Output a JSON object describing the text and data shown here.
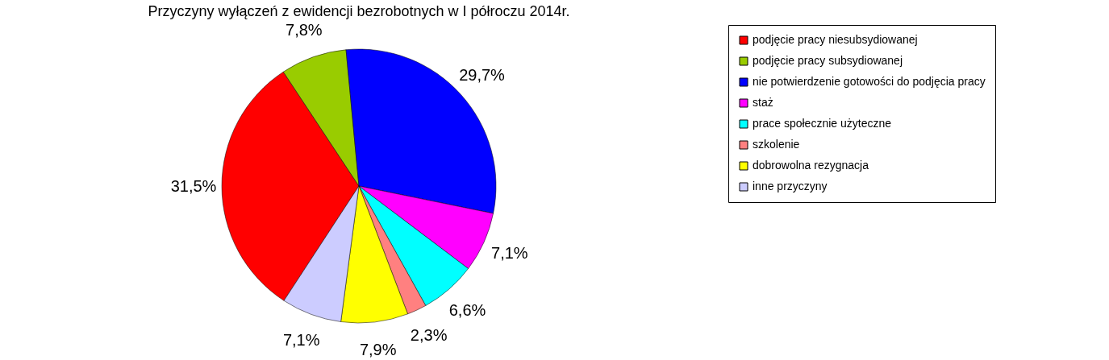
{
  "chart_data": {
    "type": "pie",
    "title": "Przyczyny wyłączeń z ewidencji bezrobotnych w I półroczu 2014r.",
    "categories": [
      "podjęcie pracy niesubsydiowanej",
      "podjęcie pracy subsydiowanej",
      "nie potwierdzenie gotowości do podjęcia pracy",
      "staż",
      "prace społecznie użyteczne",
      "szkolenie",
      "dobrowolna rezygnacja",
      "inne przyczyny"
    ],
    "values": [
      31.5,
      7.8,
      29.7,
      7.1,
      6.6,
      2.3,
      7.9,
      7.1
    ],
    "colors": [
      "#ff0000",
      "#99cc00",
      "#0000ff",
      "#ff00ff",
      "#00ffff",
      "#ff8080",
      "#ffff00",
      "#ccccff"
    ],
    "value_labels": [
      "31,5%",
      "7,8%",
      "29,7%",
      "7,1%",
      "6,6%",
      "2,3%",
      "7,9%",
      "7,1%"
    ],
    "legend": "right"
  }
}
